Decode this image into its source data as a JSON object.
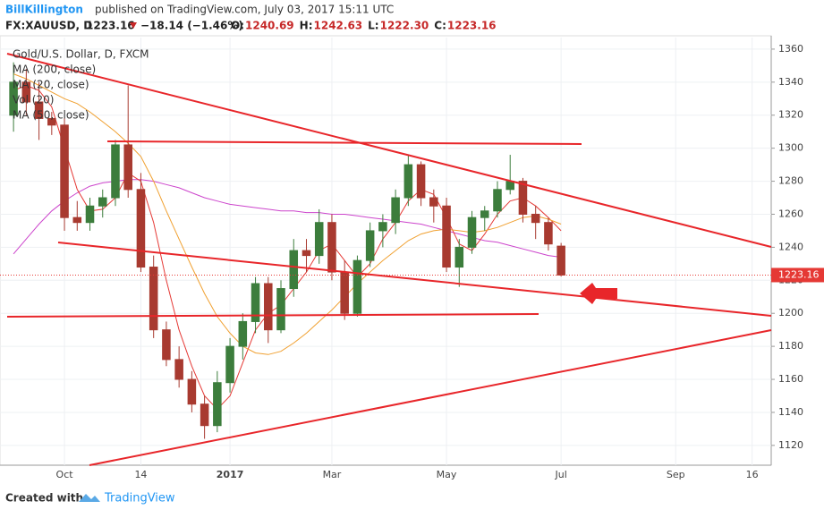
{
  "header": {
    "author": "BillKillington",
    "published": "published on TradingView.com, July 03, 2017 15:11 UTC",
    "symbol": "FX:XAUUSD, D",
    "price": "1223.16",
    "change": "−18.14 (−1.46%)",
    "ohlc": [
      {
        "label": "O:",
        "value": "1240.69"
      },
      {
        "label": "H:",
        "value": "1242.63"
      },
      {
        "label": "L:",
        "value": "1222.30"
      },
      {
        "label": "C:",
        "value": "1223.16"
      }
    ]
  },
  "footer": {
    "created_with": "Created with",
    "brand": "TradingView"
  },
  "chart_data": {
    "type": "candlestick",
    "title": "Gold/U.S. Dollar, D, FXCM",
    "categories": [
      null,
      null,
      null,
      null,
      "Oct",
      null,
      null,
      null,
      null,
      null,
      "14",
      null,
      null,
      null,
      null,
      null,
      null,
      "2017",
      null,
      null,
      null,
      null,
      null,
      null,
      null,
      "Mar",
      null,
      null,
      null,
      null,
      null,
      null,
      null,
      null,
      "May",
      null,
      null,
      null,
      null,
      null,
      null,
      null,
      null,
      "Jul",
      null,
      null,
      null,
      null,
      null,
      null,
      null,
      null,
      "Sep",
      null,
      null,
      null,
      null,
      null,
      "16",
      null
    ],
    "open": [
      1320,
      1340,
      1328,
      1318,
      1314,
      1258,
      1255,
      1265,
      1270,
      1302,
      1275,
      1228,
      1190,
      1172,
      1160,
      1145,
      1132,
      1158,
      1180,
      1195,
      1218,
      1190,
      1215,
      1238,
      1235,
      1255,
      1225,
      1200,
      1232,
      1250,
      1255,
      1270,
      1290,
      1270,
      1265,
      1228,
      1240,
      1258,
      1262,
      1275,
      1280,
      1260,
      1255,
      1240.69,
      null,
      null,
      null,
      null,
      null,
      null,
      null,
      null,
      null,
      null,
      null,
      null,
      null,
      null,
      null,
      null
    ],
    "high": [
      1352,
      1348,
      1340,
      1322,
      1318,
      1268,
      1270,
      1275,
      1305,
      1338,
      1285,
      1235,
      1195,
      1180,
      1165,
      1150,
      1165,
      1185,
      1200,
      1222,
      1222,
      1220,
      1245,
      1245,
      1263,
      1260,
      1232,
      1235,
      1255,
      1260,
      1275,
      1296,
      1292,
      1275,
      1270,
      1245,
      1262,
      1265,
      1280,
      1296,
      1282,
      1265,
      1258,
      1242.63,
      null,
      null,
      null,
      null,
      null,
      null,
      null,
      null,
      null,
      null,
      null,
      null,
      null,
      null,
      null,
      null
    ],
    "low": [
      1310,
      1320,
      1305,
      1308,
      1250,
      1250,
      1250,
      1258,
      1265,
      1270,
      1225,
      1185,
      1168,
      1155,
      1140,
      1124,
      1128,
      1152,
      1172,
      1188,
      1182,
      1188,
      1210,
      1225,
      1230,
      1220,
      1196,
      1198,
      1228,
      1240,
      1248,
      1265,
      1265,
      1255,
      1225,
      1216,
      1236,
      1250,
      1258,
      1272,
      1255,
      1245,
      1238,
      1222.3,
      null,
      null,
      null,
      null,
      null,
      null,
      null,
      null,
      null,
      null,
      null,
      null,
      null,
      null,
      null,
      null
    ],
    "close": [
      1340,
      1328,
      1318,
      1314,
      1258,
      1255,
      1265,
      1270,
      1302,
      1275,
      1228,
      1190,
      1172,
      1160,
      1145,
      1132,
      1158,
      1180,
      1195,
      1218,
      1190,
      1215,
      1238,
      1235,
      1255,
      1225,
      1200,
      1232,
      1250,
      1255,
      1270,
      1290,
      1270,
      1265,
      1228,
      1240,
      1258,
      1262,
      1275,
      1280,
      1260,
      1255,
      1242,
      1223.16,
      null,
      null,
      null,
      null,
      null,
      null,
      null,
      null,
      null,
      null,
      null,
      null,
      null,
      null,
      null,
      null
    ],
    "up_color": "#3c7d3c",
    "down_color": "#a83a30",
    "series": [
      {
        "name": "MA (200, close)",
        "color": "#cc44cc",
        "values": [
          1236,
          1245,
          1254,
          1262,
          1268,
          1273,
          1277,
          1279,
          1280,
          1281,
          1281,
          1280,
          1278,
          1276,
          1273,
          1270,
          1268,
          1266,
          1265,
          1264,
          1263,
          1262,
          1262,
          1261,
          1261,
          1260,
          1260,
          1259,
          1258,
          1257,
          1256,
          1255,
          1254,
          1252,
          1250,
          1248,
          1246,
          1244,
          1243,
          1241,
          1239,
          1237,
          1235,
          1234,
          null,
          null,
          null,
          null,
          null,
          null,
          null,
          null,
          null,
          null,
          null,
          null,
          null,
          null,
          null,
          null
        ]
      },
      {
        "name": "MA (20, close)",
        "color": "#e53935",
        "values": [
          1335,
          1338,
          1335,
          1325,
          1300,
          1275,
          1262,
          1263,
          1270,
          1285,
          1280,
          1255,
          1220,
          1190,
          1168,
          1150,
          1142,
          1150,
          1170,
          1190,
          1200,
          1205,
          1215,
          1225,
          1238,
          1242,
          1232,
          1222,
          1230,
          1245,
          1255,
          1268,
          1275,
          1272,
          1258,
          1242,
          1238,
          1248,
          1260,
          1268,
          1270,
          1265,
          1258,
          1250,
          null,
          null,
          null,
          null,
          null,
          null,
          null,
          null,
          null,
          null,
          null,
          null,
          null,
          null,
          null,
          null
        ]
      },
      {
        "name": "MA (50, close)",
        "color": "#f0a030",
        "values": [
          1345,
          1342,
          1338,
          1334,
          1330,
          1327,
          1322,
          1316,
          1310,
          1303,
          1295,
          1280,
          1262,
          1245,
          1228,
          1212,
          1198,
          1188,
          1180,
          1176,
          1175,
          1177,
          1182,
          1188,
          1195,
          1202,
          1210,
          1218,
          1225,
          1232,
          1238,
          1244,
          1248,
          1250,
          1251,
          1250,
          1249,
          1250,
          1252,
          1255,
          1258,
          1259,
          1257,
          1254,
          null,
          null,
          null,
          null,
          null,
          null,
          null,
          null,
          null,
          null,
          null,
          null,
          null,
          null,
          null,
          null
        ]
      }
    ],
    "volume_label": "Vol (20)",
    "ylim": [
      1108,
      1367
    ],
    "yticks": [
      1120,
      1140,
      1160,
      1180,
      1200,
      1220,
      1240,
      1260,
      1280,
      1300,
      1320,
      1340,
      1360
    ],
    "last_value_label": "1223.16",
    "last_value_color": "#e53935"
  }
}
